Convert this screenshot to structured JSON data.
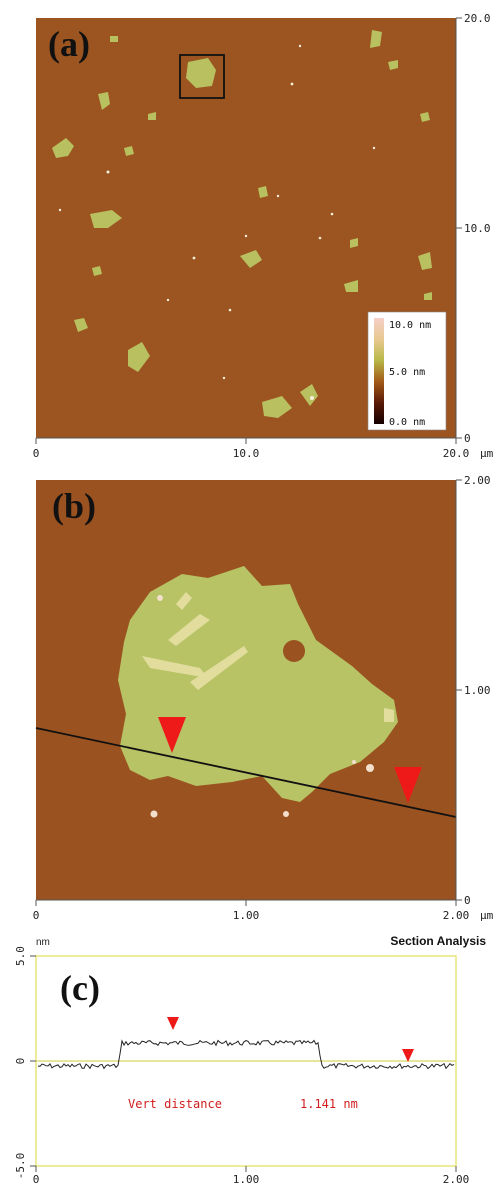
{
  "panel_a": {
    "label": "(a)",
    "x_ticks": [
      "0",
      "10.0",
      "20.0"
    ],
    "x_unit": "µm",
    "y_ticks": [
      "20.0",
      "10.0",
      "0"
    ],
    "colorbar": {
      "ticks": [
        "10.0 nm",
        "5.0 nm",
        "0.0 nm"
      ],
      "colors": [
        "#f6cfc8",
        "#e8c890",
        "#b8b848",
        "#a35a18",
        "#5a1a08",
        "#140000"
      ]
    },
    "colors": {
      "background": "#9c5420",
      "flake": "#b8c060"
    }
  },
  "panel_b": {
    "label": "(b)",
    "x_ticks": [
      "0",
      "1.00",
      "2.00"
    ],
    "x_unit": "µm",
    "y_ticks": [
      "2.00",
      "1.00",
      "0"
    ],
    "colors": {
      "background": "#9b5221",
      "flake": "#b7c365",
      "marker": "#ee1a1a"
    }
  },
  "panel_c": {
    "label": "(c)",
    "title": "Section Analysis",
    "y_unit": "nm",
    "y_ticks": [
      "5.0",
      "0",
      "-5.0"
    ],
    "x_ticks": [
      "0",
      "1.00",
      "2.00"
    ],
    "measurement": {
      "label": "Vert distance",
      "value": "1.141 nm"
    },
    "colors": {
      "frame": "#e6e67a",
      "zero_line": "#d8d860",
      "trace": "#222222",
      "marker": "#ee1a1a",
      "text": "#d01e1e"
    }
  }
}
